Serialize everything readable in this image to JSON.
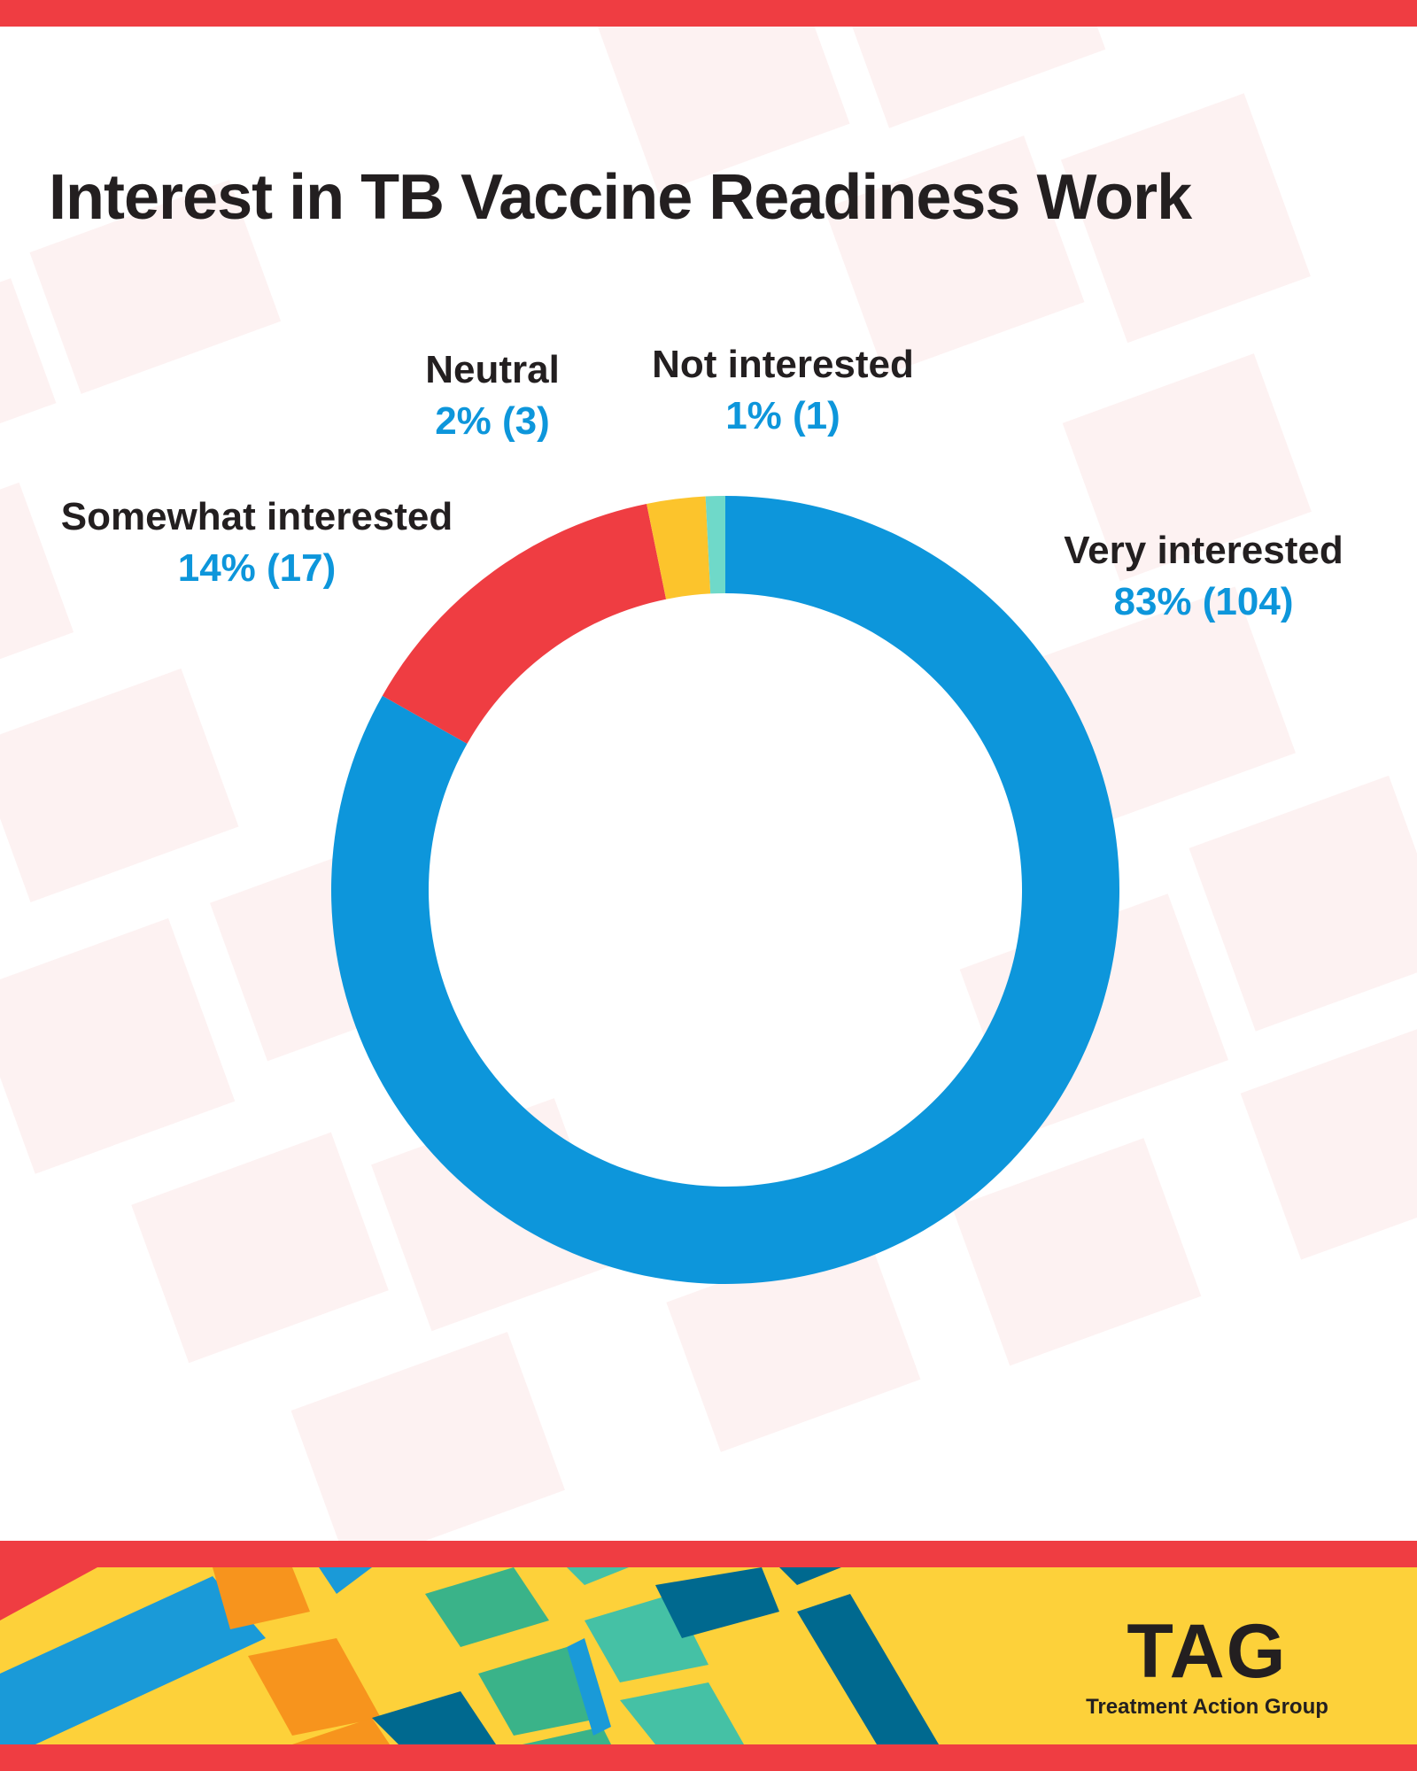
{
  "colors": {
    "accent_red": "#ef3d42",
    "footer_yellow": "#fdd13a",
    "background_tile": "#fdeeee",
    "title_text": "#231f20",
    "value_text": "#0d96db"
  },
  "page": {
    "title": "Interest in TB Vaccine Readiness Work"
  },
  "chart_data": {
    "type": "pie",
    "style": "donut",
    "title": "Interest in TB Vaccine Readiness Work",
    "legend": "none (direct labels)",
    "slices": [
      {
        "label": "Very interested",
        "percent": 83,
        "count": 104,
        "display": "83% (104)",
        "color": "#0d96db"
      },
      {
        "label": "Somewhat interested",
        "percent": 14,
        "count": 17,
        "display": "14% (17)",
        "color": "#ef3d42"
      },
      {
        "label": "Neutral",
        "percent": 2,
        "count": 3,
        "display": "2% (3)",
        "color": "#fcc42c"
      },
      {
        "label": "Not interested",
        "percent": 1,
        "count": 1,
        "display": "1% (1)",
        "color": "#6fd9c9"
      }
    ]
  },
  "footer": {
    "logo_mark": "TAG",
    "logo_org": "Treatment Action Group"
  }
}
